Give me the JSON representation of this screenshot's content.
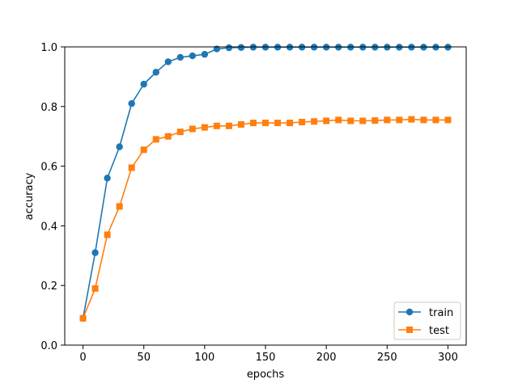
{
  "chart_data": {
    "type": "line",
    "xlabel": "epochs",
    "ylabel": "accuracy",
    "xlim": [
      -15,
      315
    ],
    "ylim": [
      0.0,
      1.0
    ],
    "x_ticks": [
      0,
      50,
      100,
      150,
      200,
      250,
      300
    ],
    "x_tick_labels": [
      "0",
      "50",
      "100",
      "150",
      "200",
      "250",
      "300"
    ],
    "y_ticks": [
      0.0,
      0.2,
      0.4,
      0.6,
      0.8,
      1.0
    ],
    "y_tick_labels": [
      "0.0",
      "0.2",
      "0.4",
      "0.6",
      "0.8",
      "1.0"
    ],
    "grid": false,
    "legend_position": "lower-right",
    "series": [
      {
        "name": "train",
        "color": "#1f77b4",
        "marker": "circle",
        "x": [
          0,
          10,
          20,
          30,
          40,
          50,
          60,
          70,
          80,
          90,
          100,
          110,
          120,
          130,
          140,
          150,
          160,
          170,
          180,
          190,
          200,
          210,
          220,
          230,
          240,
          250,
          260,
          270,
          280,
          290,
          300
        ],
        "values": [
          0.09,
          0.31,
          0.56,
          0.665,
          0.81,
          0.875,
          0.915,
          0.95,
          0.965,
          0.97,
          0.975,
          0.993,
          0.997,
          0.998,
          0.999,
          0.999,
          0.999,
          0.999,
          0.999,
          0.999,
          0.999,
          0.999,
          0.999,
          0.999,
          0.999,
          0.999,
          0.999,
          0.999,
          0.999,
          0.999,
          0.999
        ]
      },
      {
        "name": "test",
        "color": "#ff7f0e",
        "marker": "square",
        "x": [
          0,
          10,
          20,
          30,
          40,
          50,
          60,
          70,
          80,
          90,
          100,
          110,
          120,
          130,
          140,
          150,
          160,
          170,
          180,
          190,
          200,
          210,
          220,
          230,
          240,
          250,
          260,
          270,
          280,
          290,
          300
        ],
        "values": [
          0.09,
          0.19,
          0.37,
          0.465,
          0.595,
          0.655,
          0.69,
          0.7,
          0.715,
          0.725,
          0.73,
          0.735,
          0.735,
          0.74,
          0.745,
          0.745,
          0.745,
          0.745,
          0.748,
          0.75,
          0.752,
          0.755,
          0.752,
          0.752,
          0.753,
          0.755,
          0.755,
          0.757,
          0.755,
          0.755,
          0.755
        ]
      }
    ]
  }
}
